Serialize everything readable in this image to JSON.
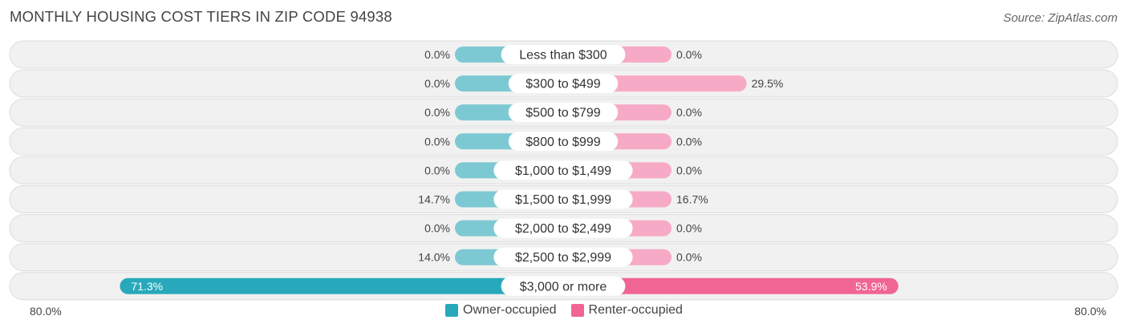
{
  "header": {
    "title": "MONTHLY HOUSING COST TIERS IN ZIP CODE 94938",
    "source": "Source: ZipAtlas.com"
  },
  "colors": {
    "owner_light": "#7dc9d3",
    "owner_strong": "#28a9bb",
    "renter_light": "#f7aac5",
    "renter_strong": "#f06594",
    "row_background": "#f1f1f1",
    "row_border": "#dcdcdc"
  },
  "chart_data": {
    "type": "bar",
    "orientation": "horizontal-diverging",
    "categories": [
      "Less than $300",
      "$300 to $499",
      "$500 to $799",
      "$800 to $999",
      "$1,000 to $1,499",
      "$1,500 to $1,999",
      "$2,000 to $2,499",
      "$2,500 to $2,999",
      "$3,000 or more"
    ],
    "series": [
      {
        "name": "Owner-occupied",
        "values": [
          0.0,
          0.0,
          0.0,
          0.0,
          0.0,
          14.7,
          0.0,
          14.0,
          71.3
        ],
        "labels": [
          "0.0%",
          "0.0%",
          "0.0%",
          "0.0%",
          "0.0%",
          "14.7%",
          "0.0%",
          "14.0%",
          "71.3%"
        ]
      },
      {
        "name": "Renter-occupied",
        "values": [
          0.0,
          29.5,
          0.0,
          0.0,
          0.0,
          16.7,
          0.0,
          0.0,
          53.9
        ],
        "labels": [
          "0.0%",
          "29.5%",
          "0.0%",
          "0.0%",
          "0.0%",
          "16.7%",
          "0.0%",
          "0.0%",
          "53.9%"
        ]
      }
    ],
    "xlim": [
      -80,
      80
    ],
    "axis_left_label": "80.0%",
    "axis_right_label": "80.0%",
    "legend_position": "bottom-center"
  }
}
